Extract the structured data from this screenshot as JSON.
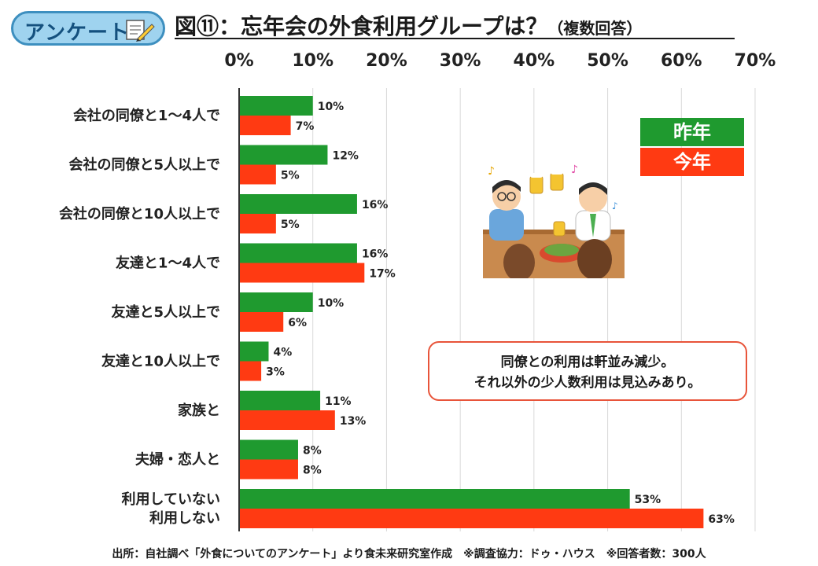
{
  "header": {
    "badge_label": "アンケート",
    "title_main": "図⑪：忘年会の外食利用グループは？",
    "title_sub": "（複数回答）"
  },
  "callout": {
    "line1": "同僚との利用は軒並み減少。",
    "line2": "それ以外の少人数利用は見込みあり。"
  },
  "footer": {
    "note": "出所：自社調べ「外食についてのアンケート」より食未来研究室作成　※調査協力：ドゥ・ハウス　※回答者数：300人"
  },
  "colors": {
    "last_year": "#1f9a2f",
    "this_year": "#ff3a12"
  },
  "chart_data": {
    "type": "bar",
    "orientation": "horizontal",
    "categories": [
      "会社の同僚と1～4人で",
      "会社の同僚と5人以上で",
      "会社の同僚と10人以上で",
      "友達と1～4人で",
      "友達と5人以上で",
      "友達と10人以上で",
      "家族と",
      "夫婦・恋人と",
      "利用していない\n利用しない"
    ],
    "series": [
      {
        "name": "昨年",
        "values": [
          10,
          12,
          16,
          16,
          10,
          4,
          11,
          8,
          53
        ]
      },
      {
        "name": "今年",
        "values": [
          7,
          5,
          5,
          17,
          6,
          3,
          13,
          8,
          63
        ]
      }
    ],
    "xlim": [
      0,
      70
    ],
    "x_ticks": [
      "0%",
      "10%",
      "20%",
      "30%",
      "40%",
      "50%",
      "60%",
      "70%"
    ],
    "value_suffix": "%",
    "axis_position": "top",
    "grid": true,
    "legend_position": "top-right"
  }
}
